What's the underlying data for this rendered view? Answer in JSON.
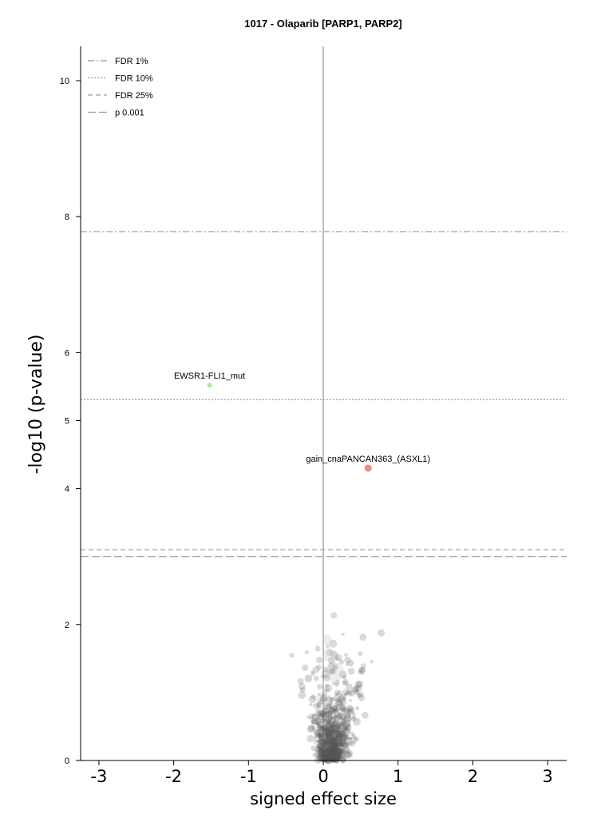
{
  "chart_data": {
    "type": "scatter",
    "title": "1017 - Olaparib [PARP1, PARP2]",
    "xlabel": "signed effect size",
    "ylabel": "-log10 (p-value)",
    "xlim": [
      -3.3,
      3.25
    ],
    "ylim": [
      0,
      10.5
    ],
    "x_ticks": [
      -3,
      -2,
      -1,
      0,
      1,
      2,
      3
    ],
    "x_tick_labels": [
      "-3",
      "-2",
      "-1",
      "0",
      "1",
      "2",
      "3"
    ],
    "y_ticks": [
      0,
      2,
      4,
      5,
      6,
      8,
      10
    ],
    "y_tick_labels": [
      "0",
      "2",
      "4",
      "5",
      "6",
      "8",
      "10"
    ],
    "zero_line_x": 0,
    "threshold_lines": [
      {
        "name": "FDR 1%",
        "y": 7.78,
        "style": "dash-dot",
        "color": "#999999"
      },
      {
        "name": "FDR 10%",
        "y": 5.31,
        "style": "dotted",
        "color": "#999999"
      },
      {
        "name": "FDR 25%",
        "y": 3.1,
        "style": "dashed",
        "color": "#999999"
      },
      {
        "name": "p 0.001",
        "y": 3.0,
        "style": "long-dashed",
        "color": "#999999"
      }
    ],
    "legend_position": "top-left",
    "highlighted_points": [
      {
        "label": "EWSR1-FLI1_mut",
        "x": -1.52,
        "y": 5.52,
        "color": "#a8e89a",
        "size": 3
      },
      {
        "label": "gain_cnaPANCAN363_(ASXL1)",
        "x": 0.6,
        "y": 4.3,
        "color": "#f08a8a",
        "size": 4.5
      }
    ],
    "background_points": {
      "color": "#555555",
      "description_count": 700,
      "x_center": 0.1,
      "y_max": 2.65
    }
  }
}
